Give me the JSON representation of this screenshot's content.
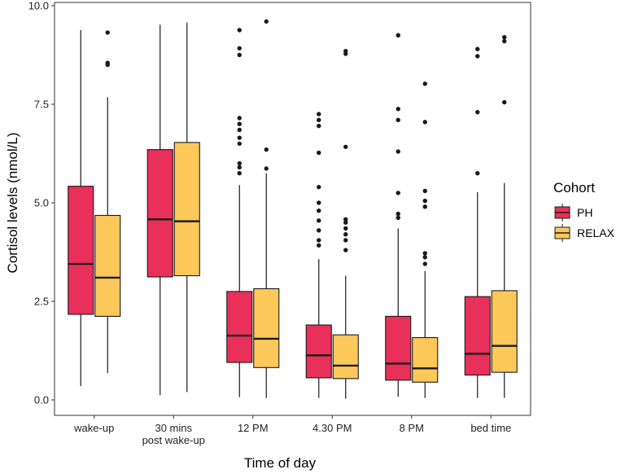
{
  "chart_data": {
    "type": "boxplot",
    "title": "",
    "xlabel": "Time of day",
    "ylabel": "Cortisol levels (nmol/L)",
    "ylim": [
      0,
      10
    ],
    "yticks": [
      "0.0",
      "2.5",
      "5.0",
      "7.5",
      "10.0"
    ],
    "ytick_values": [
      0,
      2.5,
      5,
      7.5,
      10
    ],
    "categories": [
      [
        "wake-up"
      ],
      [
        "30 mins",
        "post wake-up"
      ],
      [
        "12 PM"
      ],
      [
        "4.30 PM"
      ],
      [
        "8 PM"
      ],
      [
        "bed time"
      ]
    ],
    "legend": {
      "title": "Cohort",
      "position": "right",
      "entries": [
        "PH",
        "RELAX"
      ]
    },
    "colors": {
      "PH": "#e8305a",
      "RELAX": "#fdc85a",
      "outline": "#1a1a1a"
    },
    "series": [
      {
        "name": "PH",
        "boxes": [
          {
            "min": 0.35,
            "q1": 2.17,
            "median": 3.45,
            "q3": 5.42,
            "max": 9.38,
            "outliers": []
          },
          {
            "min": 0.12,
            "q1": 3.12,
            "median": 4.58,
            "q3": 6.35,
            "max": 9.52,
            "outliers": []
          },
          {
            "min": 0.07,
            "q1": 0.95,
            "median": 1.63,
            "q3": 2.75,
            "max": 5.45,
            "outliers": [
              5.75,
              5.9,
              6.0,
              6.5,
              6.65,
              6.85,
              7.0,
              7.15,
              8.75,
              8.92,
              9.38
            ]
          },
          {
            "min": 0.05,
            "q1": 0.56,
            "median": 1.13,
            "q3": 1.9,
            "max": 3.57,
            "outliers": [
              3.92,
              4.05,
              4.3,
              4.55,
              4.8,
              5.0,
              5.4,
              6.27,
              6.95,
              7.1,
              7.25
            ]
          },
          {
            "min": 0.08,
            "q1": 0.5,
            "median": 0.92,
            "q3": 2.12,
            "max": 4.35,
            "outliers": [
              4.62,
              4.72,
              5.25,
              6.3,
              7.1,
              7.38,
              9.25
            ]
          },
          {
            "min": 0.05,
            "q1": 0.63,
            "median": 1.17,
            "q3": 2.62,
            "max": 5.27,
            "outliers": [
              5.75,
              7.3,
              8.72,
              8.9
            ]
          }
        ]
      },
      {
        "name": "RELAX",
        "boxes": [
          {
            "min": 0.68,
            "q1": 2.12,
            "median": 3.1,
            "q3": 4.68,
            "max": 7.68,
            "outliers": [
              8.5,
              8.55,
              9.32
            ]
          },
          {
            "min": 0.2,
            "q1": 3.15,
            "median": 4.53,
            "q3": 6.53,
            "max": 9.57,
            "outliers": []
          },
          {
            "min": 0.05,
            "q1": 0.82,
            "median": 1.55,
            "q3": 2.82,
            "max": 5.75,
            "outliers": [
              5.87,
              6.35,
              9.6
            ]
          },
          {
            "min": 0.03,
            "q1": 0.54,
            "median": 0.87,
            "q3": 1.65,
            "max": 3.15,
            "outliers": [
              3.8,
              4.05,
              4.2,
              4.35,
              4.5,
              4.58,
              6.42,
              8.78,
              8.85
            ]
          },
          {
            "min": 0.05,
            "q1": 0.45,
            "median": 0.8,
            "q3": 1.58,
            "max": 3.27,
            "outliers": [
              3.45,
              3.62,
              3.72,
              4.9,
              5.05,
              5.3,
              7.05,
              8.02
            ]
          },
          {
            "min": 0.05,
            "q1": 0.7,
            "median": 1.37,
            "q3": 2.77,
            "max": 5.5,
            "outliers": [
              7.55,
              9.1,
              9.2
            ]
          }
        ]
      }
    ]
  }
}
